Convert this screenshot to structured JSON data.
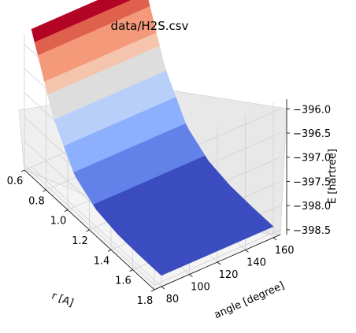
{
  "chart_data": {
    "type": "surface",
    "title": "data/H2S.csv",
    "xlabel": "r [A]",
    "ylabel": "angle [degree]",
    "zlabel": "E [hartree]",
    "x_ticks": [
      0.6,
      0.8,
      1.0,
      1.2,
      1.4,
      1.6,
      1.8
    ],
    "x_tick_labels": [
      "0.6",
      "0.8",
      "1.0",
      "1.2",
      "1.4",
      "1.6",
      "1.8"
    ],
    "y_ticks": [
      80,
      100,
      120,
      140,
      160
    ],
    "y_tick_labels": [
      "80",
      "100",
      "120",
      "140",
      "160"
    ],
    "z_ticks": [
      -396.0,
      -396.5,
      -397.0,
      -397.5,
      -398.0,
      -398.5
    ],
    "z_tick_labels": [
      "−396.0",
      "−396.5",
      "−397.0",
      "−397.5",
      "−398.0",
      "−398.5"
    ],
    "xlim": [
      0.6,
      1.8
    ],
    "ylim": [
      75,
      165
    ],
    "zlim": [
      -398.6,
      -395.8
    ],
    "grid": true,
    "colormap": "coolwarm",
    "surface": {
      "r": [
        0.6,
        0.8,
        1.0,
        1.2,
        1.4,
        1.6,
        1.8
      ],
      "angle_min": 80,
      "angle_max": 160,
      "energy_by_r": [
        -395.75,
        -397.15,
        -397.95,
        -398.25,
        -398.35,
        -398.37,
        -398.37
      ]
    }
  }
}
